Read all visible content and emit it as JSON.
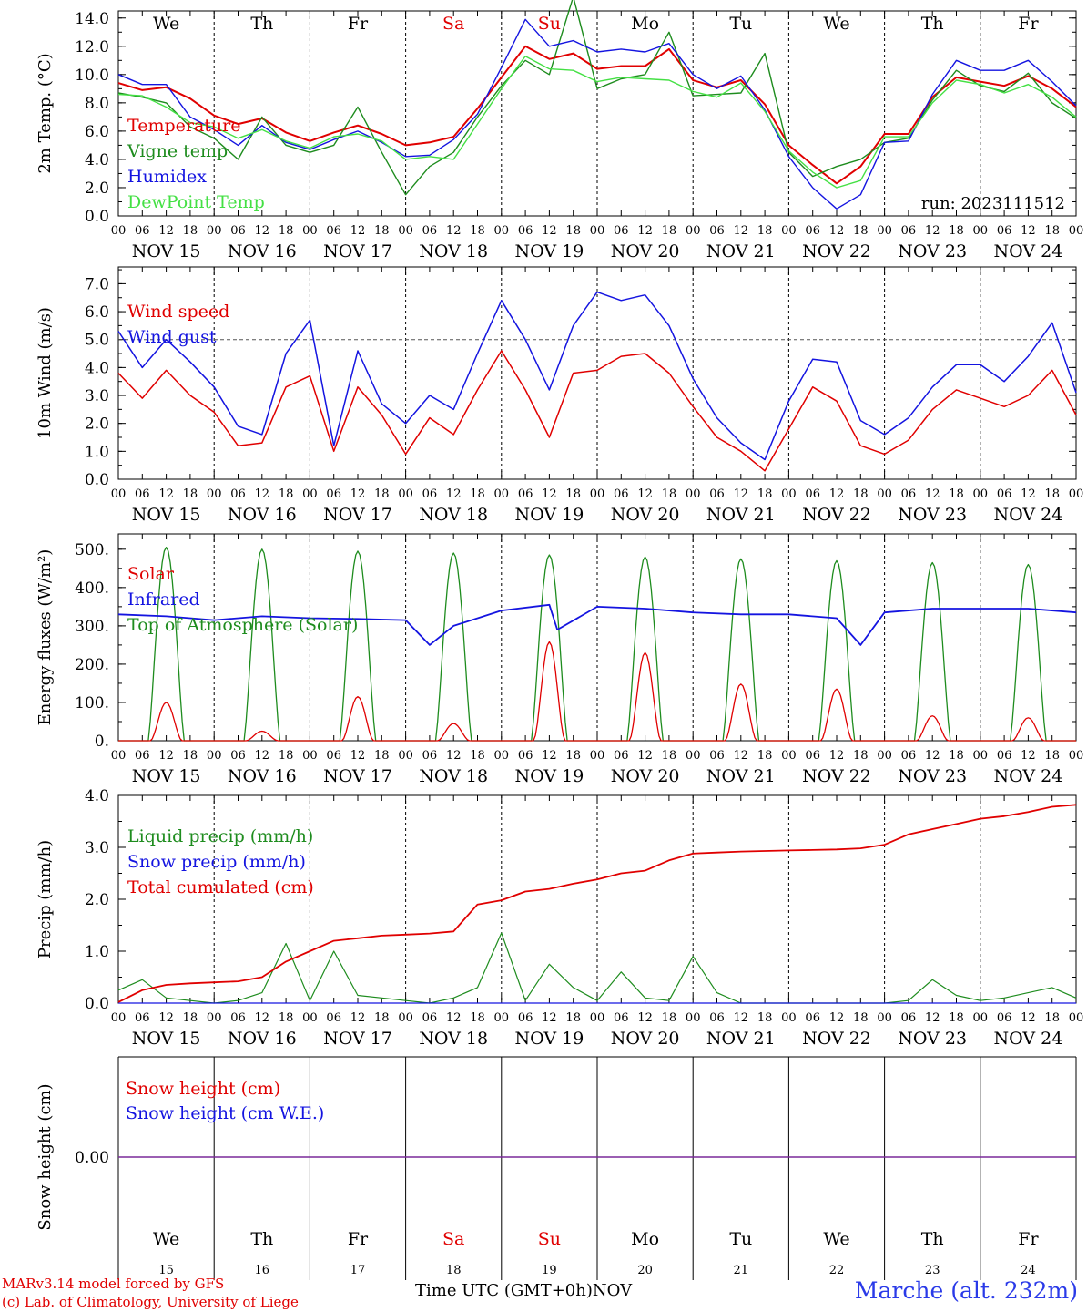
{
  "station": "Marche (alt. 232m)",
  "credits": [
    "MARv3.14 model forced by GFS",
    "(c) Lab. of Climatology, University of Liege"
  ],
  "x_title": "Time UTC (GMT+0h)",
  "x_month": "NOV",
  "run_label": "run: 2023111512",
  "days": [
    "We",
    "Th",
    "Fr",
    "Sa",
    "Su",
    "Mo",
    "Tu",
    "We",
    "Th",
    "Fr"
  ],
  "weekend_flags": [
    false,
    false,
    false,
    true,
    true,
    false,
    false,
    false,
    false,
    false
  ],
  "day_numbers": [
    "15",
    "16",
    "17",
    "18",
    "19",
    "20",
    "21",
    "22",
    "23",
    "24"
  ],
  "date_labels": [
    "NOV 15",
    "NOV 16",
    "NOV 17",
    "NOV 18",
    "NOV 19",
    "NOV 20",
    "NOV 21",
    "NOV 22",
    "NOV 23",
    "NOV 24"
  ],
  "hour_labels": [
    "00",
    "06",
    "12",
    "18"
  ],
  "colors": {
    "red": "#e00000",
    "green": "#1e8c1e",
    "blue": "#1414e0",
    "lightgreen": "#44e044",
    "purple": "#7a2a9a",
    "weekend": "#e00000"
  },
  "chart_data": [
    {
      "type": "line",
      "ylabel": "2m Temp. (°C)",
      "ylim": [
        0,
        14.5
      ],
      "yticks": [
        "0.0",
        "2.0",
        "4.0",
        "6.0",
        "8.0",
        "10.0",
        "12.0",
        "14.0"
      ],
      "ytick_values": [
        0,
        2,
        4,
        6,
        8,
        10,
        12,
        14
      ],
      "x_hours": [
        0,
        6,
        12,
        18,
        24,
        30,
        36,
        42,
        48,
        54,
        60,
        66,
        72,
        78,
        84,
        90,
        96,
        102,
        108,
        114,
        120,
        126,
        132,
        138,
        144,
        150,
        156,
        162,
        168,
        174,
        180,
        186,
        192,
        198,
        204,
        210,
        216,
        222,
        228,
        234,
        240
      ],
      "series": [
        {
          "name": "Temperature",
          "color": "red",
          "values": [
            9.4,
            8.9,
            9.1,
            8.3,
            7.1,
            6.5,
            6.9,
            5.9,
            5.3,
            5.9,
            6.4,
            5.8,
            5.0,
            5.2,
            5.6,
            7.6,
            9.8,
            12.0,
            11.1,
            11.5,
            10.4,
            10.6,
            10.6,
            11.8,
            9.6,
            9.1,
            9.6,
            7.9,
            5.0,
            3.6,
            2.3,
            3.5,
            5.8,
            5.8,
            8.4,
            9.8,
            9.5,
            9.2,
            9.9,
            9.0,
            7.7
          ]
        },
        {
          "name": "Vigne temp",
          "color": "green",
          "values": [
            8.7,
            8.4,
            8.0,
            6.3,
            5.5,
            4.0,
            7.0,
            5.0,
            4.5,
            5.0,
            7.7,
            4.5,
            1.5,
            3.5,
            4.5,
            7.0,
            9.2,
            11.0,
            10.0,
            15.5,
            9.0,
            9.7,
            10.0,
            13.0,
            8.5,
            8.6,
            8.7,
            11.5,
            4.5,
            2.8,
            3.5,
            4.0,
            5.2,
            5.5,
            8.2,
            10.3,
            9.2,
            8.8,
            10.1,
            8.0,
            6.9
          ]
        },
        {
          "name": "Humidex",
          "color": "blue",
          "values": [
            10.0,
            9.3,
            9.3,
            7.0,
            6.1,
            5.0,
            6.4,
            5.2,
            4.7,
            5.4,
            6.0,
            5.2,
            4.2,
            4.3,
            5.4,
            7.2,
            10.5,
            13.9,
            12.0,
            12.4,
            11.6,
            11.8,
            11.6,
            12.2,
            10.0,
            9.0,
            9.9,
            7.5,
            4.2,
            2.0,
            0.5,
            1.5,
            5.2,
            5.3,
            8.6,
            11.0,
            10.3,
            10.3,
            11.0,
            9.5,
            7.8
          ]
        },
        {
          "name": "DewPoint Temp",
          "color": "lightgreen",
          "values": [
            8.6,
            8.5,
            7.7,
            6.6,
            6.3,
            5.5,
            6.1,
            5.3,
            4.8,
            5.6,
            5.8,
            5.3,
            4.0,
            4.2,
            4.0,
            6.5,
            9.0,
            11.3,
            10.4,
            10.3,
            9.5,
            9.8,
            9.7,
            9.6,
            8.8,
            8.4,
            9.4,
            7.4,
            4.6,
            3.1,
            2.0,
            2.5,
            5.6,
            5.6,
            8.0,
            9.6,
            9.3,
            8.7,
            9.3,
            8.4,
            7.0
          ]
        }
      ]
    },
    {
      "type": "line",
      "ylabel": "10m Wind (m/s)",
      "ylim": [
        0,
        7.6
      ],
      "yticks": [
        "0.0",
        "1.0",
        "2.0",
        "3.0",
        "4.0",
        "5.0",
        "6.0",
        "7.0"
      ],
      "ytick_values": [
        0,
        1,
        2,
        3,
        4,
        5,
        6,
        7
      ],
      "reference_line": 5.0,
      "x_hours": [
        0,
        6,
        12,
        18,
        24,
        30,
        36,
        42,
        48,
        54,
        60,
        66,
        72,
        78,
        84,
        90,
        96,
        102,
        108,
        114,
        120,
        126,
        132,
        138,
        144,
        150,
        156,
        162,
        168,
        174,
        180,
        186,
        192,
        198,
        204,
        210,
        216,
        222,
        228,
        234,
        240
      ],
      "series": [
        {
          "name": "Wind speed",
          "color": "red",
          "values": [
            3.8,
            2.9,
            3.9,
            3.0,
            2.4,
            1.2,
            1.3,
            3.3,
            3.7,
            1.0,
            3.3,
            2.3,
            0.9,
            2.2,
            1.6,
            3.2,
            4.6,
            3.2,
            1.5,
            3.8,
            3.9,
            4.4,
            4.5,
            3.8,
            2.6,
            1.5,
            1.0,
            0.3,
            1.8,
            3.3,
            2.8,
            1.2,
            0.9,
            1.4,
            2.5,
            3.2,
            2.9,
            2.6,
            3.0,
            3.9,
            2.3
          ]
        },
        {
          "name": "Wind gust",
          "color": "blue",
          "values": [
            5.3,
            4.0,
            5.0,
            4.2,
            3.3,
            1.9,
            1.6,
            4.5,
            5.7,
            1.2,
            4.6,
            2.7,
            2.0,
            3.0,
            2.5,
            4.5,
            6.4,
            5.0,
            3.2,
            5.5,
            6.7,
            6.4,
            6.6,
            5.5,
            3.6,
            2.2,
            1.3,
            0.7,
            2.8,
            4.3,
            4.2,
            2.1,
            1.6,
            2.2,
            3.3,
            4.1,
            4.1,
            3.5,
            4.4,
            5.6,
            3.1
          ]
        }
      ]
    },
    {
      "type": "line",
      "ylabel": "Energy fluxes (W/m²)",
      "ylim": [
        0,
        540
      ],
      "yticks": [
        "0.",
        "100.",
        "200.",
        "300.",
        "400.",
        "500."
      ],
      "ytick_values": [
        0,
        100,
        200,
        300,
        400,
        500
      ],
      "series": [
        {
          "name": "Solar",
          "color": "red",
          "peaks": [
            {
              "hour": 12,
              "value": 100
            },
            {
              "hour": 36,
              "value": 25
            },
            {
              "hour": 60,
              "value": 115
            },
            {
              "hour": 84,
              "value": 45
            },
            {
              "hour": 108,
              "value": 258
            },
            {
              "hour": 132,
              "value": 230
            },
            {
              "hour": 156,
              "value": 148
            },
            {
              "hour": 180,
              "value": 135
            },
            {
              "hour": 204,
              "value": 65
            },
            {
              "hour": 228,
              "value": 60
            }
          ]
        },
        {
          "name": "Infrared",
          "color": "blue",
          "x_hours": [
            0,
            12,
            24,
            36,
            48,
            60,
            72,
            78,
            84,
            96,
            108,
            110,
            120,
            132,
            144,
            156,
            168,
            180,
            186,
            192,
            204,
            216,
            228,
            240
          ],
          "values": [
            330,
            325,
            315,
            325,
            320,
            318,
            315,
            250,
            300,
            340,
            355,
            290,
            350,
            345,
            335,
            330,
            330,
            320,
            250,
            335,
            345,
            345,
            345,
            335
          ]
        },
        {
          "name": "Top of Atmosphere (Solar)",
          "color": "green",
          "peaks": [
            {
              "hour": 12,
              "value": 505
            },
            {
              "hour": 36,
              "value": 500
            },
            {
              "hour": 60,
              "value": 495
            },
            {
              "hour": 84,
              "value": 490
            },
            {
              "hour": 108,
              "value": 485
            },
            {
              "hour": 132,
              "value": 480
            },
            {
              "hour": 156,
              "value": 475
            },
            {
              "hour": 180,
              "value": 470
            },
            {
              "hour": 204,
              "value": 465
            },
            {
              "hour": 228,
              "value": 460
            }
          ]
        }
      ]
    },
    {
      "type": "line",
      "ylabel": "Precip (mm/h)",
      "ylim": [
        0,
        4.0
      ],
      "yticks": [
        "0.0",
        "1.0",
        "2.0",
        "3.0",
        "4.0"
      ],
      "ytick_values": [
        0,
        1,
        2,
        3,
        4
      ],
      "x_hours": [
        0,
        6,
        12,
        18,
        24,
        30,
        36,
        42,
        48,
        54,
        60,
        66,
        72,
        78,
        84,
        90,
        96,
        102,
        108,
        114,
        120,
        126,
        132,
        138,
        144,
        150,
        156,
        162,
        168,
        174,
        180,
        186,
        192,
        198,
        204,
        210,
        216,
        222,
        228,
        234,
        240
      ],
      "series": [
        {
          "name": "Liquid precip (mm/h)",
          "color": "green",
          "values": [
            0.25,
            0.45,
            0.1,
            0.05,
            0.0,
            0.05,
            0.2,
            1.15,
            0.05,
            1.0,
            0.15,
            0.1,
            0.05,
            0.0,
            0.1,
            0.3,
            1.35,
            0.05,
            0.75,
            0.3,
            0.05,
            0.6,
            0.1,
            0.05,
            0.9,
            0.2,
            0.0,
            0.0,
            0.0,
            0.0,
            0.0,
            0.0,
            0.0,
            0.05,
            0.45,
            0.15,
            0.05,
            0.1,
            0.2,
            0.3,
            0.1
          ]
        },
        {
          "name": "Snow precip (mm/h)",
          "color": "blue",
          "values": [
            0,
            0,
            0,
            0,
            0,
            0,
            0,
            0,
            0,
            0,
            0,
            0,
            0,
            0,
            0,
            0,
            0,
            0,
            0,
            0,
            0,
            0,
            0,
            0,
            0,
            0,
            0,
            0,
            0,
            0,
            0,
            0,
            0,
            0,
            0,
            0,
            0,
            0,
            0,
            0,
            0
          ]
        },
        {
          "name": "Total cumulated (cm)",
          "color": "red",
          "values": [
            0.02,
            0.25,
            0.35,
            0.38,
            0.4,
            0.42,
            0.5,
            0.8,
            1.0,
            1.2,
            1.25,
            1.3,
            1.32,
            1.34,
            1.38,
            1.9,
            1.98,
            2.15,
            2.2,
            2.3,
            2.38,
            2.5,
            2.55,
            2.75,
            2.88,
            2.9,
            2.92,
            2.93,
            2.94,
            2.95,
            2.96,
            2.98,
            3.05,
            3.25,
            3.35,
            3.45,
            3.55,
            3.6,
            3.68,
            3.78,
            3.82
          ]
        }
      ]
    },
    {
      "type": "line",
      "ylabel": "Snow height (cm)",
      "yticks": [
        "0.00"
      ],
      "ytick_values": [
        0
      ],
      "series": [
        {
          "name": "Snow height (cm)",
          "color": "red",
          "values": [
            0,
            0
          ]
        },
        {
          "name": "Snow height (cm W.E.)",
          "color": "blue",
          "values": [
            0,
            0
          ]
        }
      ]
    }
  ]
}
